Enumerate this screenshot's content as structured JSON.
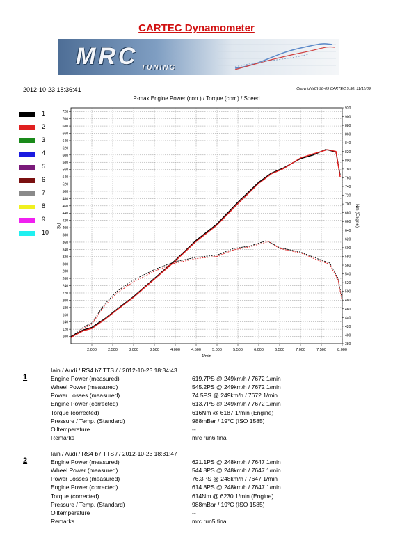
{
  "header": {
    "title": "CARTEC Dynamometer",
    "logo_text": "MRC",
    "logo_subtext": "TUNING",
    "datetime": "2012-10-23 18:36:41",
    "copyright": "Copyright(C) 98-09 CARTEC 5.30, 11/11/09"
  },
  "legend": {
    "items": [
      {
        "label": "1",
        "color": "#000000"
      },
      {
        "label": "2",
        "color": "#e02020"
      },
      {
        "label": "3",
        "color": "#1a8a1a"
      },
      {
        "label": "4",
        "color": "#1a1ae0"
      },
      {
        "label": "5",
        "color": "#7a1a7a"
      },
      {
        "label": "6",
        "color": "#7a1010"
      },
      {
        "label": "7",
        "color": "#8a8a8a"
      },
      {
        "label": "8",
        "color": "#f0f020"
      },
      {
        "label": "9",
        "color": "#f020f0"
      },
      {
        "label": "10",
        "color": "#20f0f0"
      }
    ]
  },
  "chart_data": {
    "type": "line",
    "title": "P-max Engine Power (corr.) / Torque (corr.) / Speed",
    "xlabel": "1/min",
    "ylabel_left": "PS",
    "ylabel_right": "Nm (Engine)",
    "xlim": [
      1500,
      8000
    ],
    "ylim_left": [
      80,
      730
    ],
    "ylim_right": [
      380,
      920
    ],
    "xticks": [
      2000,
      2500,
      3000,
      3500,
      4000,
      4500,
      5000,
      5500,
      6000,
      6500,
      7000,
      7500,
      8000
    ],
    "xtick_labels": [
      "2,000",
      "2,500",
      "3,000",
      "3,500",
      "4,000",
      "4,500",
      "5,000",
      "5,500",
      "6,000",
      "6,500",
      "7,000",
      "7,500",
      "8,000"
    ],
    "yticks_left": [
      100,
      120,
      140,
      160,
      180,
      200,
      220,
      240,
      260,
      280,
      300,
      320,
      340,
      360,
      380,
      400,
      420,
      440,
      460,
      480,
      500,
      520,
      540,
      560,
      580,
      600,
      620,
      640,
      660,
      680,
      700,
      720
    ],
    "yticks_right": [
      380,
      400,
      420,
      440,
      460,
      480,
      500,
      520,
      540,
      560,
      580,
      600,
      620,
      640,
      660,
      680,
      700,
      720,
      740,
      760,
      780,
      800,
      820,
      840,
      860,
      880,
      900,
      920
    ],
    "grid": true,
    "series": [
      {
        "name": "1",
        "kind": "power",
        "color": "#000000",
        "axis": "left",
        "x": [
          1500,
          1800,
          2000,
          2300,
          2600,
          3000,
          3500,
          4000,
          4500,
          5000,
          5500,
          6000,
          6300,
          6600,
          7000,
          7300,
          7600,
          7672,
          7850,
          7950
        ],
        "y": [
          100,
          118,
          125,
          148,
          175,
          210,
          260,
          310,
          365,
          410,
          470,
          525,
          550,
          565,
          590,
          600,
          615,
          613.7,
          608,
          545
        ]
      },
      {
        "name": "2",
        "kind": "power",
        "color": "#e02020",
        "axis": "left",
        "x": [
          1500,
          1800,
          2000,
          2300,
          2600,
          3000,
          3500,
          4000,
          4500,
          5000,
          5500,
          6000,
          6300,
          6600,
          7000,
          7300,
          7647,
          7850,
          7950
        ],
        "y": [
          98,
          116,
          122,
          146,
          173,
          208,
          258,
          308,
          362,
          407,
          466,
          522,
          548,
          563,
          592,
          603,
          614.8,
          610,
          540
        ]
      },
      {
        "name": "1",
        "kind": "torque",
        "color": "#000000",
        "axis": "right",
        "x": [
          1500,
          1800,
          2000,
          2300,
          2600,
          3000,
          3500,
          4000,
          4500,
          5000,
          5400,
          5800,
          6187,
          6500,
          7000,
          7400,
          7700,
          7900,
          8000
        ],
        "y": [
          395,
          418,
          428,
          470,
          500,
          526,
          550,
          568,
          578,
          583,
          598,
          604,
          616,
          600,
          590,
          575,
          565,
          530,
          480
        ]
      },
      {
        "name": "2",
        "kind": "torque",
        "color": "#e02020",
        "axis": "right",
        "x": [
          1500,
          1800,
          2000,
          2300,
          2600,
          3000,
          3500,
          4000,
          4500,
          5000,
          5400,
          5800,
          6230,
          6500,
          7000,
          7400,
          7700,
          7900,
          8000
        ],
        "y": [
          393,
          415,
          425,
          466,
          496,
          522,
          546,
          565,
          575,
          580,
          595,
          602,
          614,
          598,
          588,
          572,
          562,
          526,
          476
        ]
      }
    ]
  },
  "results": [
    {
      "number": "1",
      "heading": "Iain / Audi / RS4 b7 TTS /  / 2012-10-23 18:34:43",
      "rows": [
        {
          "label": "Engine Power (measured)",
          "value": "619.7PS @ 249km/h / 7672 1/min"
        },
        {
          "label": "Wheel Power (measured)",
          "value": "545.2PS @ 249km/h / 7672 1/min"
        },
        {
          "label": "Power Losses (measured)",
          "value": "74.5PS @ 249km/h / 7672 1/min"
        },
        {
          "label": "Engine Power (corrected)",
          "value": "613.7PS @ 249km/h / 7672 1/min"
        },
        {
          "label": "Torque (corrected)",
          "value": "616Nm @ 6187 1/min (Engine)"
        },
        {
          "label": "Pressure / Temp. (Standard)",
          "value": "988mBar / 19°C   (ISO 1585)"
        },
        {
          "label": "Oiltemperature",
          "value": "--"
        },
        {
          "label": "Remarks",
          "value": "mrc run6 final"
        }
      ]
    },
    {
      "number": "2",
      "heading": "Iain / Audi / RS4 b7 TTS /  / 2012-10-23 18:31:47",
      "rows": [
        {
          "label": "Engine Power (measured)",
          "value": "621.1PS @ 248km/h / 7647 1/min"
        },
        {
          "label": "Wheel Power (measured)",
          "value": "544.8PS @ 248km/h / 7647 1/min"
        },
        {
          "label": "Power Losses (measured)",
          "value": "76.3PS @ 248km/h / 7647 1/min"
        },
        {
          "label": "Engine Power (corrected)",
          "value": "614.8PS @ 248km/h / 7647 1/min"
        },
        {
          "label": "Torque (corrected)",
          "value": "614Nm @ 6230 1/min (Engine)"
        },
        {
          "label": "Pressure / Temp. (Standard)",
          "value": "988mBar / 19°C   (ISO 1585)"
        },
        {
          "label": "Oiltemperature",
          "value": "--"
        },
        {
          "label": "Remarks",
          "value": "mrc run5 final"
        }
      ]
    }
  ]
}
